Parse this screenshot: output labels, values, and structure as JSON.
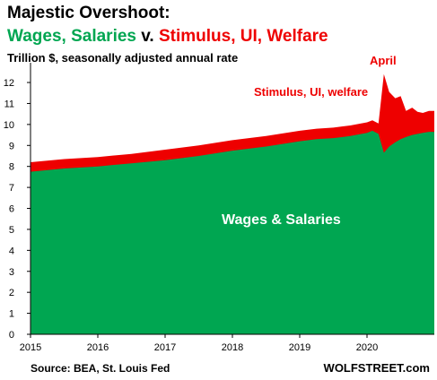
{
  "title": {
    "line1": "Majestic Overshoot:",
    "line2_parts": [
      {
        "text": "Wages, Salaries",
        "color": "#00a651"
      },
      {
        "text": " v. ",
        "color": "#000000"
      },
      {
        "text": "Stimulus, UI, Welfare",
        "color": "#ee0000"
      }
    ],
    "subtitle": "Trillion $, seasonally adjusted annual rate"
  },
  "annotations": {
    "april": "April",
    "stimulus": "Stimulus, UI, welfare",
    "wages": "Wages & Salaries"
  },
  "source": "Source: BEA, St. Louis Fed",
  "brand": "WOLFSTREET.com",
  "colors": {
    "wages": "#00a651",
    "transfers": "#ee0000",
    "axis": "#000000"
  },
  "chart_data": {
    "type": "area",
    "stacked": true,
    "x_unit": "year",
    "x": [
      2015.0,
      2015.5,
      2016.0,
      2016.5,
      2017.0,
      2017.5,
      2018.0,
      2018.5,
      2019.0,
      2019.25,
      2019.5,
      2019.75,
      2020.0,
      2020.08,
      2020.17,
      2020.25,
      2020.33,
      2020.42,
      2020.5,
      2020.58,
      2020.67,
      2020.75,
      2020.83,
      2020.92
    ],
    "series": [
      {
        "name": "Wages & Salaries",
        "values": [
          7.75,
          7.9,
          8.0,
          8.15,
          8.3,
          8.5,
          8.75,
          8.95,
          9.2,
          9.3,
          9.35,
          9.45,
          9.6,
          9.7,
          9.55,
          8.65,
          8.95,
          9.15,
          9.3,
          9.4,
          9.5,
          9.55,
          9.6,
          9.65
        ]
      },
      {
        "name": "Stimulus, UI, welfare",
        "values": [
          0.45,
          0.45,
          0.45,
          0.45,
          0.5,
          0.5,
          0.5,
          0.5,
          0.5,
          0.5,
          0.5,
          0.5,
          0.5,
          0.5,
          0.5,
          3.75,
          2.6,
          2.1,
          2.05,
          1.25,
          1.3,
          1.05,
          0.95,
          1.0
        ]
      }
    ],
    "xlim": [
      2015,
      2021
    ],
    "ylim": [
      0,
      12.6
    ],
    "x_ticks": [
      2015,
      2016,
      2017,
      2018,
      2019,
      2020
    ],
    "y_ticks": [
      0,
      1,
      2,
      3,
      4,
      5,
      6,
      7,
      8,
      9,
      10,
      11,
      12
    ],
    "grid": false
  }
}
